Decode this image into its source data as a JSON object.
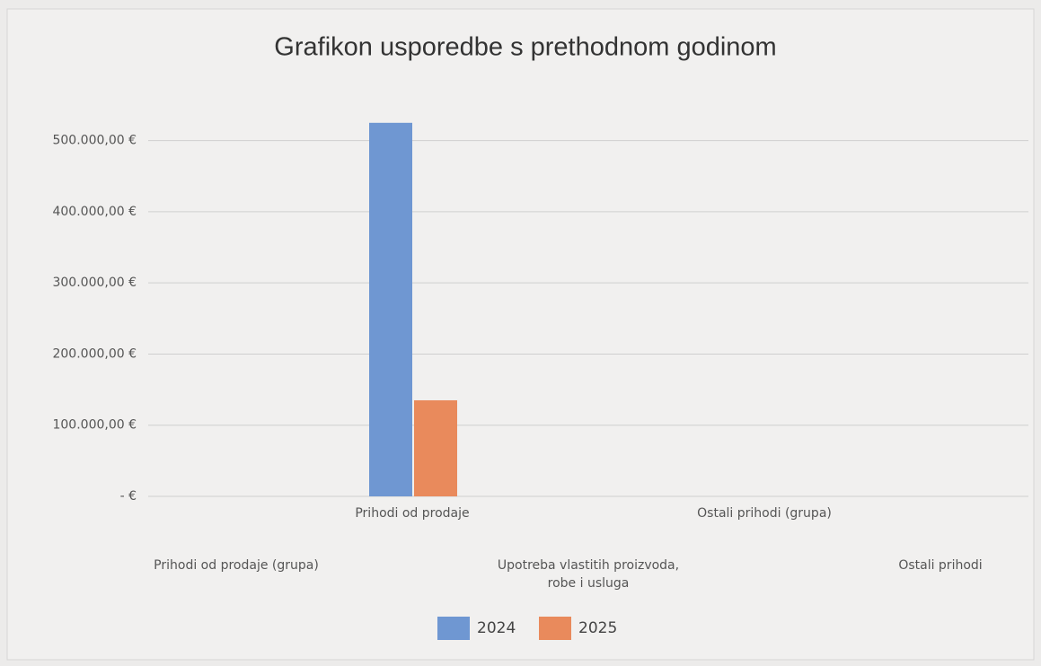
{
  "chart_data": {
    "type": "bar",
    "title": "Grafikon usporedbe s prethodnom godinom",
    "categories": [
      "Prihodi od prodaje (grupa)",
      "Prihodi od prodaje",
      "Upotreba vlastitih proizvoda, robe i usluga",
      "Ostali prihodi (grupa)",
      "Ostali prihodi"
    ],
    "series": [
      {
        "name": "2024",
        "color": "#6f97d2",
        "values": [
          null,
          525000,
          null,
          null,
          null
        ]
      },
      {
        "name": "2025",
        "color": "#e98a5c",
        "values": [
          null,
          135000,
          null,
          null,
          null
        ]
      }
    ],
    "ylim": [
      0,
      550000
    ],
    "yticks": [
      {
        "value": 0,
        "label": "-  €"
      },
      {
        "value": 100000,
        "label": "100.000,00 €"
      },
      {
        "value": 200000,
        "label": "200.000,00 €"
      },
      {
        "value": 300000,
        "label": "300.000,00 €"
      },
      {
        "value": 400000,
        "label": "400.000,00 €"
      },
      {
        "value": 500000,
        "label": "500.000,00 €"
      }
    ],
    "grid": true,
    "legend": "bottom"
  }
}
